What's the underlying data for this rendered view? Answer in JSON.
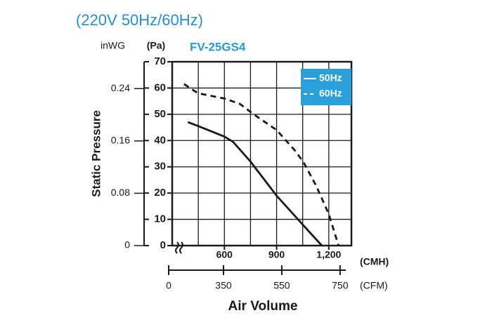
{
  "header": "(220V 50Hz/60Hz)",
  "chart_data": {
    "type": "line",
    "title": "FV-25GS4",
    "y_label": "Static Pressure",
    "x_label": "Air Volume",
    "y_unit": "(Pa)",
    "y2_unit": "inWG",
    "x_unit": "(CMH)",
    "x2_unit": "(CFM)",
    "xlim": [
      300,
      1330
    ],
    "xticks": [
      600,
      900,
      {
        "value": 1200,
        "label": "1,200"
      }
    ],
    "xgrid": [
      450,
      600,
      750,
      900,
      1050,
      1200
    ],
    "ylim": [
      0,
      70
    ],
    "yticks": [
      0,
      10,
      20,
      30,
      40,
      50,
      60,
      70
    ],
    "y2lim": [
      0,
      0.281
    ],
    "y2ticks": [
      0,
      0.08,
      0.16,
      0.24
    ],
    "x2lim": [
      174,
      789
    ],
    "x2ticks": [
      350,
      550,
      750
    ],
    "x2_origin_label": "0",
    "grid": true,
    "legend": "top-right",
    "legend_color": "#2b9fd9",
    "series": [
      {
        "name": "50Hz",
        "color": "#1a1a1a",
        "style": "solid",
        "x": [
          390,
          450,
          600,
          650,
          750,
          900,
          1050,
          1160
        ],
        "values": [
          47,
          45.5,
          41.5,
          39.5,
          32,
          19,
          8,
          0
        ]
      },
      {
        "name": "60Hz",
        "color": "#1a1a1a",
        "style": "dashed",
        "x": [
          368,
          448,
          600,
          688,
          768,
          900,
          1008,
          1056,
          1128,
          1200,
          1256
        ],
        "values": [
          61.5,
          58,
          56,
          54,
          50,
          44,
          36,
          31.6,
          22.7,
          12,
          0
        ]
      }
    ]
  }
}
